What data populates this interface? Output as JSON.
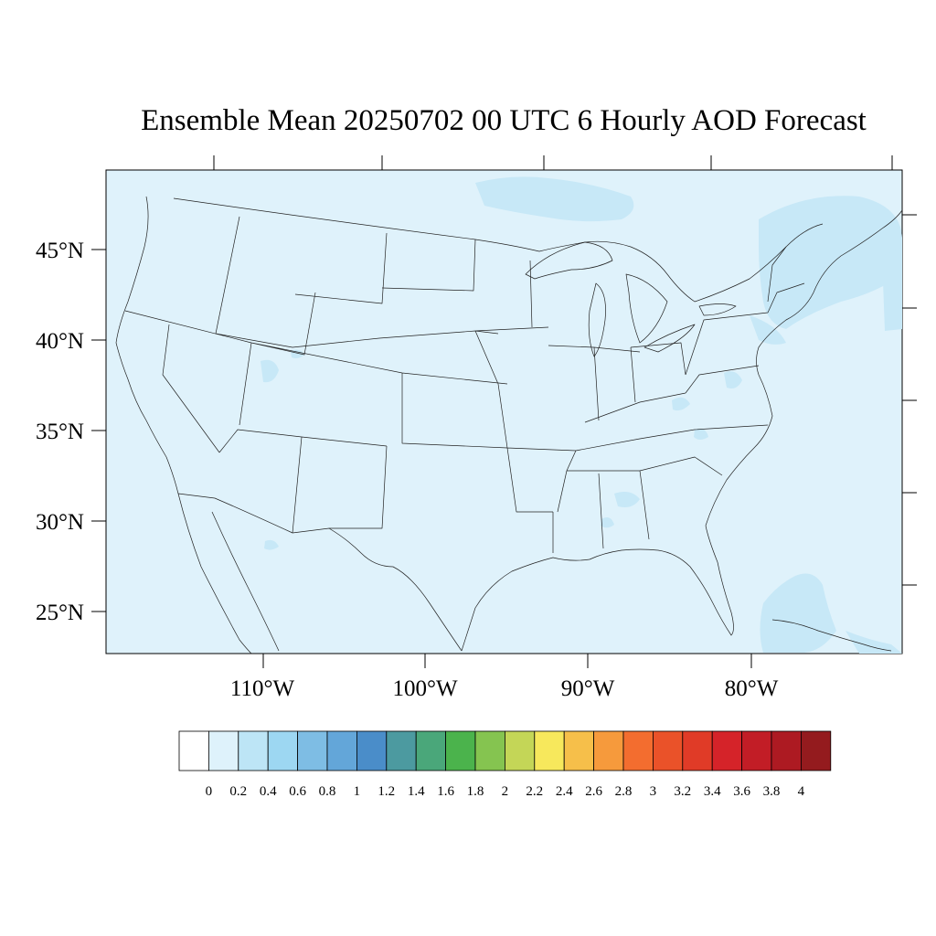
{
  "title": "Ensemble Mean 20250702 00 UTC 6 Hourly AOD Forecast",
  "colors": {
    "background": "#ffffff",
    "map_fill": "#dff2fb",
    "aod_patch_light": "#c7e8f7",
    "border_lines": "#222222"
  },
  "map": {
    "projection": "lambert-like (curved parallels)",
    "lat_labels": [
      {
        "text": "45°N",
        "lat": 45
      },
      {
        "text": "40°N",
        "lat": 40
      },
      {
        "text": "35°N",
        "lat": 35
      },
      {
        "text": "30°N",
        "lat": 30
      },
      {
        "text": "25°N",
        "lat": 25
      }
    ],
    "lon_labels": [
      {
        "text": "110°W",
        "lon": -110
      },
      {
        "text": "100°W",
        "lon": -100
      },
      {
        "text": "90°W",
        "lon": -90
      },
      {
        "text": "80°W",
        "lon": -80
      }
    ]
  },
  "colorbar": {
    "colors": [
      "#ffffff",
      "#def2fb",
      "#bde5f6",
      "#9dd7f2",
      "#7ebde4",
      "#63a6d9",
      "#4a8dc9",
      "#4c9aa0",
      "#4aa77a",
      "#4bb34c",
      "#85c450",
      "#c4d657",
      "#f7e85c",
      "#f6bf4a",
      "#f69a3c",
      "#f36d2f",
      "#ea5229",
      "#e03b27",
      "#d52329",
      "#c21d26",
      "#ad1a22",
      "#941b1e"
    ],
    "labels": [
      "0",
      "0.2",
      "0.4",
      "0.6",
      "0.8",
      "1",
      "1.2",
      "1.4",
      "1.6",
      "1.8",
      "2",
      "2.2",
      "2.4",
      "2.6",
      "2.8",
      "3",
      "3.2",
      "3.4",
      "3.6",
      "3.8",
      "4"
    ]
  }
}
